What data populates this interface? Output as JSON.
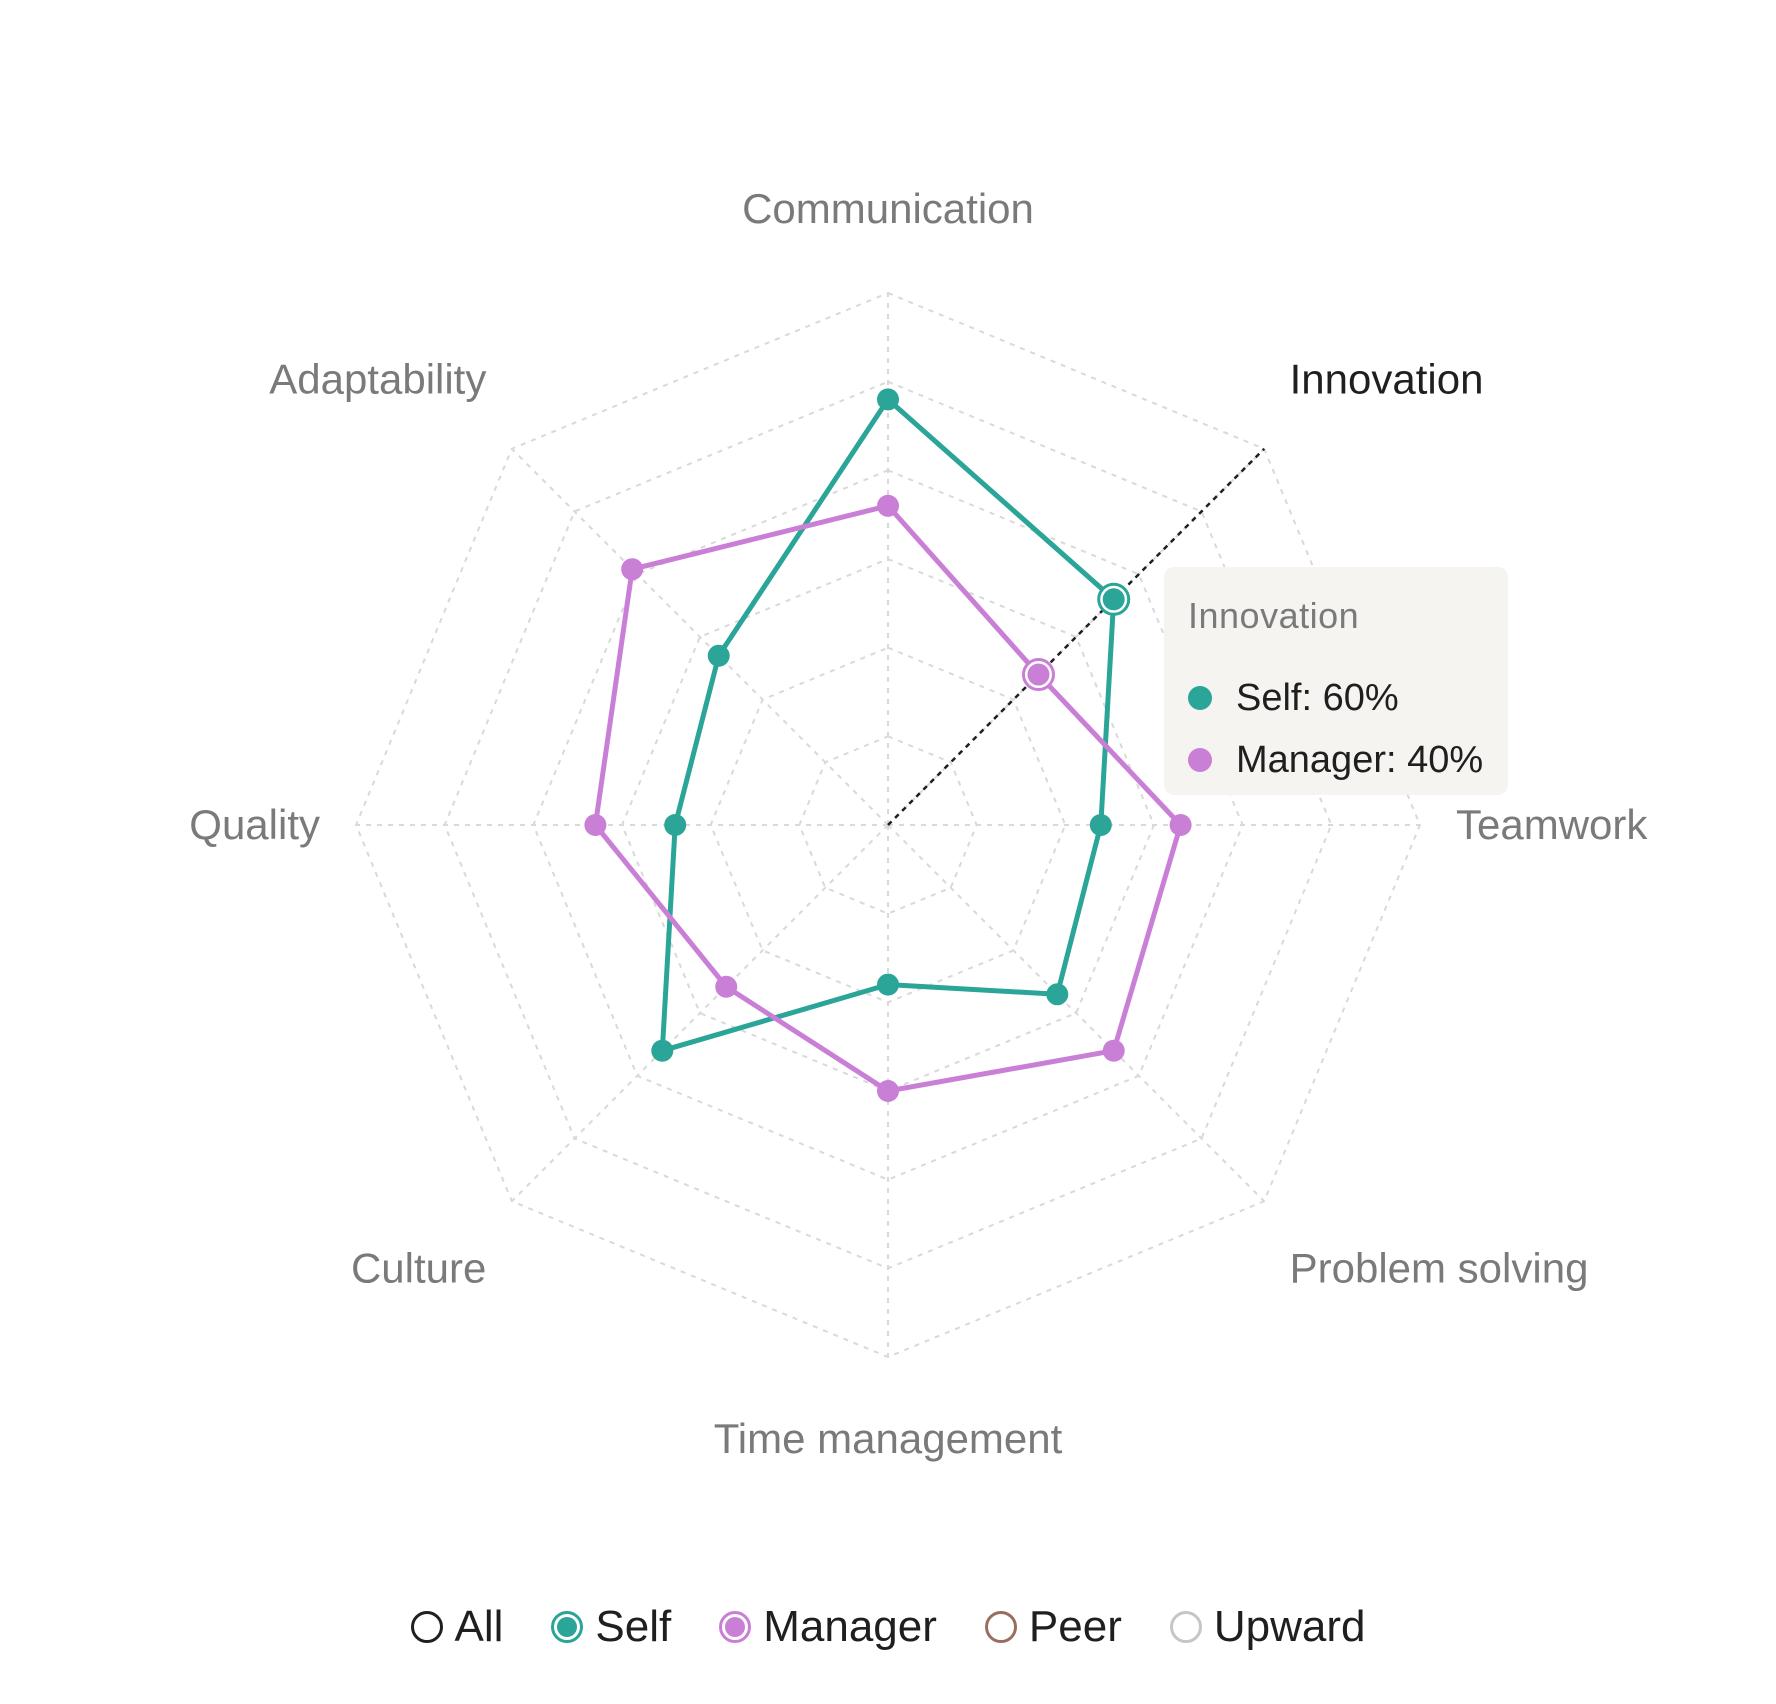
{
  "chart_data": {
    "type": "radar",
    "axes": [
      "Communication",
      "Innovation",
      "Teamwork",
      "Problem solving",
      "Time management",
      "Culture",
      "Quality",
      "Adaptability"
    ],
    "scale": {
      "min": 0,
      "max": 100,
      "unit": "%",
      "rings": 6
    },
    "grid": true,
    "series": [
      {
        "name": "Self",
        "color": "#2aa597",
        "values": [
          80,
          60,
          40,
          45,
          30,
          60,
          40,
          45
        ]
      },
      {
        "name": "Manager",
        "color": "#c97fd6",
        "values": [
          60,
          40,
          55,
          60,
          50,
          43,
          55,
          68
        ]
      }
    ],
    "highlighted_axis": "Innovation"
  },
  "tooltip": {
    "title": "Innovation",
    "rows": [
      {
        "text": "Self: 60%",
        "color": "#2aa597"
      },
      {
        "text": "Manager: 40%",
        "color": "#c97fd6"
      }
    ]
  },
  "legend": [
    {
      "label": "All",
      "border": "#1f1f1f",
      "fill": "",
      "selected": false
    },
    {
      "label": "Self",
      "border": "#2aa597",
      "fill": "#2aa597",
      "selected": true
    },
    {
      "label": "Manager",
      "border": "#c97fd6",
      "fill": "#c97fd6",
      "selected": true
    },
    {
      "label": "Peer",
      "border": "#9a6e5f",
      "fill": "",
      "selected": false
    },
    {
      "label": "Upward",
      "border": "#c6c6c6",
      "fill": "",
      "selected": false
    }
  ]
}
